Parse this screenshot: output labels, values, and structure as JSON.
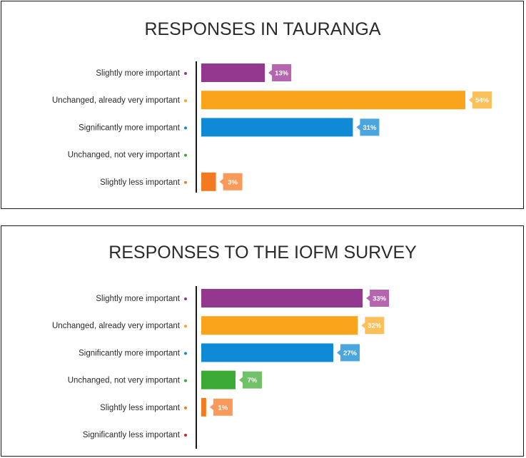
{
  "chart_data": [
    {
      "type": "bar",
      "orientation": "horizontal",
      "title": "RESPONSES IN TAURANGA",
      "categories": [
        "Slightly more important",
        "Unchanged, already very important",
        "Significantly more important",
        "Unchanged, not very important",
        "Slightly less important"
      ],
      "values": [
        13,
        54,
        31,
        0,
        3
      ],
      "labels": [
        "13%",
        "54%",
        "31%",
        "",
        "3%"
      ],
      "colors": [
        "#93378f",
        "#f9a41a",
        "#0f8ad5",
        "#3aa935",
        "#f47a20"
      ],
      "xlim": [
        0,
        55
      ],
      "grid": false,
      "legend": "none"
    },
    {
      "type": "bar",
      "orientation": "horizontal",
      "title": "RESPONSES TO THE IOFM SURVEY",
      "categories": [
        "Slightly more important",
        "Unchanged, already very important",
        "Significantly more important",
        "Unchanged, not very important",
        "Slightly less important",
        "Significantly less important"
      ],
      "values": [
        33,
        32,
        27,
        7,
        1,
        0
      ],
      "labels": [
        "33%",
        "32%",
        "27%",
        "7%",
        "1%",
        ""
      ],
      "colors": [
        "#93378f",
        "#f9a41a",
        "#0f8ad5",
        "#3aa935",
        "#f47a20",
        "#c9272d"
      ],
      "xlim": [
        0,
        35
      ],
      "grid": false,
      "legend": "none"
    }
  ],
  "styles": {
    "label_colors": [
      "#b565ad",
      "#fcc05a",
      "#4aa6df",
      "#70c167",
      "#f99a5b",
      "#dd5a5e"
    ],
    "title_color": "#2b2b2b",
    "text_color": "#2b2b2b",
    "axis_color": "#1a1a1a"
  }
}
